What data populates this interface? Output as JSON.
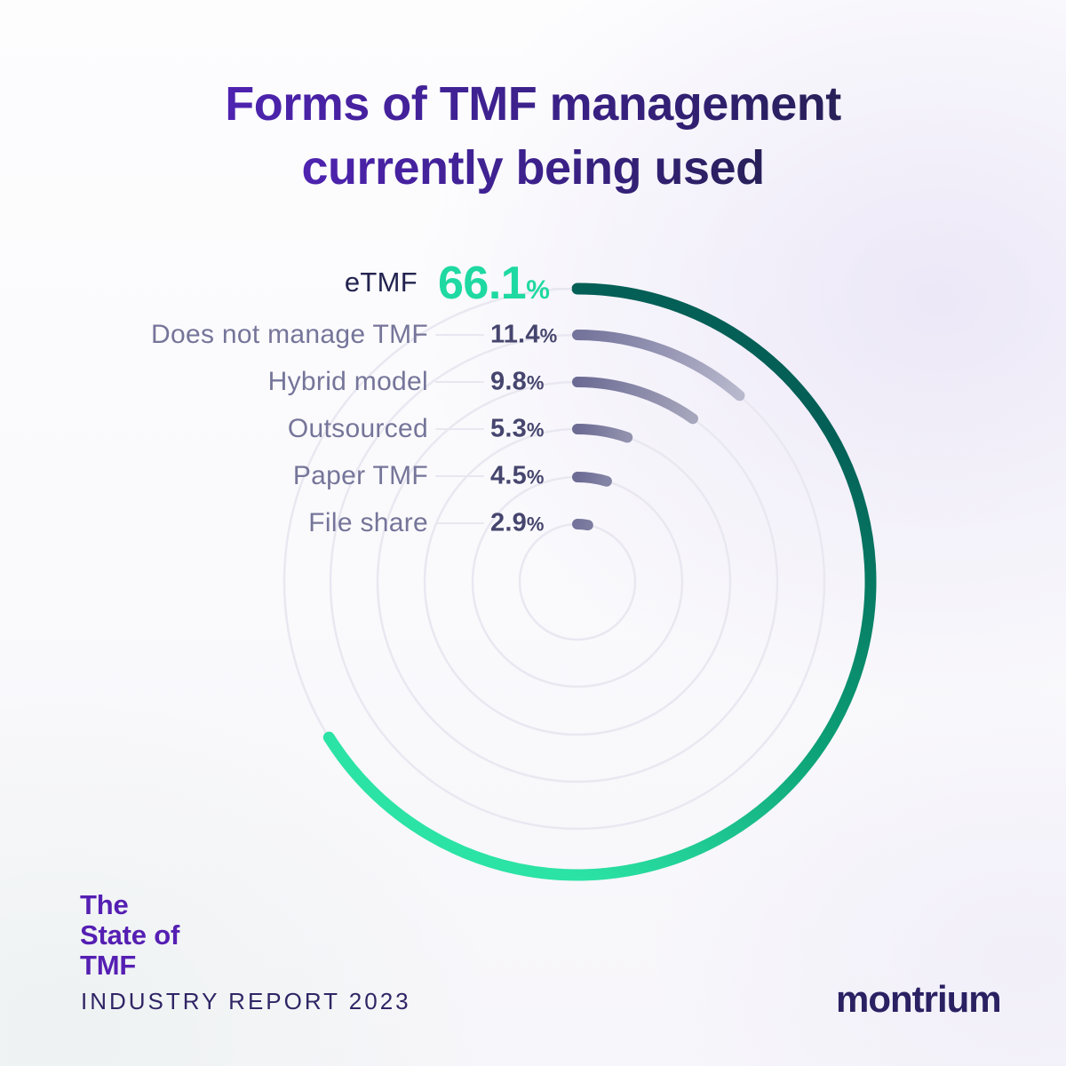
{
  "header": {
    "title_lines": [
      "Forms of TMF management",
      "currently being used"
    ]
  },
  "chart_data": {
    "type": "radial_bar",
    "title": "Forms of TMF management currently being used",
    "unit": "%",
    "arc_start": "12 o'clock, clockwise",
    "categories": [
      "eTMF",
      "Does not manage TMF",
      "Hybrid model",
      "Outsourced",
      "Paper TMF",
      "File share"
    ],
    "values": [
      66.1,
      11.4,
      9.8,
      5.3,
      4.5,
      2.9
    ],
    "items": [
      {
        "label": "eTMF",
        "value": 66.1,
        "display": "66.1",
        "unit": "%",
        "highlight": true,
        "arc_color_start": "#045F56",
        "arc_color_mid": "#0CA076",
        "arc_color_end": "#2BE3A4"
      },
      {
        "label": "Does not manage TMF",
        "value": 11.4,
        "display": "11.4",
        "unit": "%",
        "arc_color_start": "#73739B",
        "arc_color_end": "#B8B8CD"
      },
      {
        "label": "Hybrid model",
        "value": 9.8,
        "display": "9.8",
        "unit": "%",
        "arc_color_start": "#6B6B94",
        "arc_color_end": "#A6A6BC"
      },
      {
        "label": "Outsourced",
        "value": 5.3,
        "display": "5.3",
        "unit": "%",
        "arc_color_start": "#6B6B94",
        "arc_color_end": "#9292AE"
      },
      {
        "label": "Paper TMF",
        "value": 4.5,
        "display": "4.5",
        "unit": "%",
        "arc_color_start": "#6B6B94",
        "arc_color_end": "#8484A6"
      },
      {
        "label": "File share",
        "value": 2.9,
        "display": "2.9",
        "unit": "%",
        "arc_color_start": "#73739B",
        "arc_color_end": "#7C7CA0"
      }
    ],
    "colors": {
      "highlight_mint": "#1FD9A2",
      "label_gray_purple": "#75759A",
      "value_dark_slate": "#45456E",
      "track": "#E9E8F1",
      "title_gradient": [
        "#4E23B0",
        "#272058"
      ]
    },
    "legend_position": "left labels with leader lines",
    "grid": "concentric light track circles"
  },
  "footer": {
    "brand_lines": [
      "The",
      "State of",
      "TMF"
    ],
    "report_label": "INDUSTRY REPORT 2023",
    "logo_text": "montrium"
  }
}
